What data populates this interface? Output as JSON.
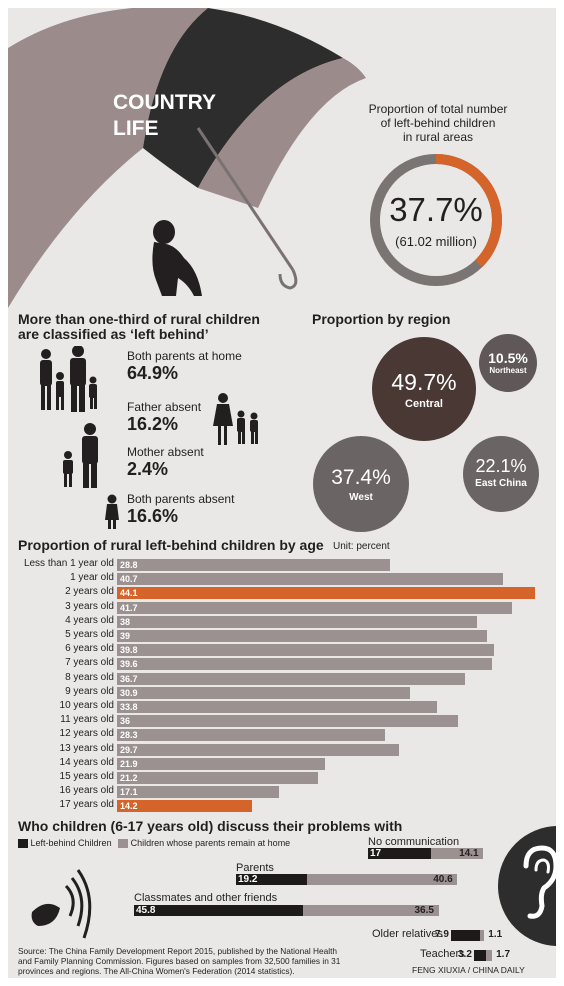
{
  "header": {
    "title_line1": "COUNTRY",
    "title_line2": "LIFE"
  },
  "total": {
    "caption_line1": "Proportion of total number",
    "caption_line2": "of left-behind children",
    "caption_line3": "in rural areas",
    "percent": "37.7%",
    "percent_value": 37.7,
    "sub": "(61.02 million)",
    "accent": "#d4642a"
  },
  "family": {
    "title_line1": "More than one-third of rural children",
    "title_line2": "are classified as ‘left behind’",
    "items": [
      {
        "label": "Both parents at home",
        "value": "64.9%"
      },
      {
        "label": "Father absent",
        "value": "16.2%"
      },
      {
        "label": "Mother absent",
        "value": "2.4%"
      },
      {
        "label": "Both parents absent",
        "value": "16.6%"
      }
    ]
  },
  "region": {
    "title": "Proportion by region",
    "items": [
      {
        "value": "49.7%",
        "name": "Central",
        "color": "#4a3834"
      },
      {
        "value": "10.5%",
        "name": "Northeast",
        "color": "#5f5758"
      },
      {
        "value": "37.4%",
        "name": "West",
        "color": "#6a6465"
      },
      {
        "value": "22.1%",
        "name": "East China",
        "color": "#6a6465"
      }
    ]
  },
  "age": {
    "title": "Proportion of rural left-behind children by age",
    "unit": "Unit: percent"
  },
  "chart_data": {
    "type": "bar",
    "title": "Proportion of rural left-behind children by age",
    "unit": "Unit: percent",
    "categories": [
      "Less than 1 year old",
      "1 year old",
      "2 years old",
      "3 years old",
      "4 years old",
      "5 years old",
      "6 years old",
      "7 years old",
      "8 years old",
      "9 years old",
      "10 years old",
      "11 years old",
      "12 years old",
      "13 years old",
      "14 years old",
      "15 years old",
      "16 years old",
      "17 years old"
    ],
    "values": [
      28.8,
      40.7,
      44.1,
      41.7,
      38,
      39,
      39.8,
      39.6,
      36.7,
      30.9,
      33.8,
      36,
      28.3,
      29.7,
      21.9,
      21.2,
      17.1,
      14.2
    ],
    "value_labels": [
      "28.8",
      "40.7",
      "44.1",
      "41.7",
      "38",
      "39",
      "39.8",
      "39.6",
      "36.7",
      "30.9",
      "33.8",
      "36",
      "28.3",
      "29.7",
      "21.9",
      "21.2",
      "17.1",
      "14.2"
    ],
    "highlight": [
      2,
      17
    ],
    "colors": {
      "bar": "#9b9190",
      "highlight": "#d4642a"
    }
  },
  "communication": {
    "title": "Who children (6-17 years old) discuss their problems with",
    "legend": [
      {
        "label": "Left-behind Children",
        "color": "#1e1a1a"
      },
      {
        "label": "Children whose parents remain at home",
        "color": "#9b9190"
      }
    ],
    "items": [
      {
        "name": "No communication",
        "left_behind": 17,
        "left_label": "17",
        "at_home": 14.1,
        "home_label": "14.1"
      },
      {
        "name": "Parents",
        "left_behind": 19.2,
        "left_label": "19.2",
        "at_home": 40.6,
        "home_label": "40.6"
      },
      {
        "name": "Classmates and other friends",
        "left_behind": 45.8,
        "left_label": "45.8",
        "at_home": 36.5,
        "home_label": "36.5"
      },
      {
        "name": "Older relatives",
        "left_behind": 7.9,
        "left_label": "7.9",
        "at_home": 1.1,
        "home_label": "1.1"
      },
      {
        "name": "Teachers",
        "left_behind": 3.2,
        "left_label": "3.2",
        "at_home": 1.7,
        "home_label": "1.7"
      }
    ]
  },
  "footer": {
    "source_line1": "Source: The China Family Development Report 2015, published by the National Health",
    "source_line2": "and Family Planning Commission. Figures based on samples from 32,500 families in 31",
    "source_line3": "provinces and regions. The All-China Women's Federation (2014 statistics).",
    "credit": "FENG XIUXIA / CHINA DAILY"
  }
}
